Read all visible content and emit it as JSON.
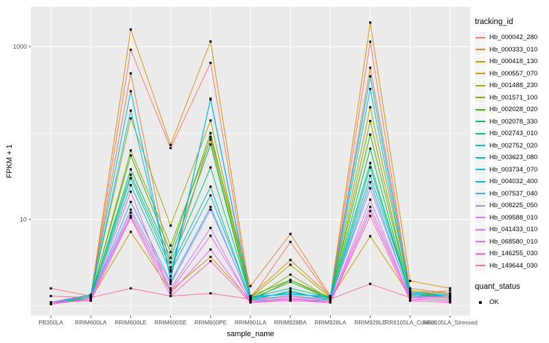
{
  "chart_data": {
    "type": "line",
    "title": "",
    "xlabel": "sample_name",
    "ylabel": "FPKM + 1",
    "y_scale": "log10",
    "ylim": [
      0.9,
      2400
    ],
    "grid": true,
    "legend_position": "right",
    "panel_bg": "#EBEBEB",
    "grid_color": "#FFFFFF",
    "tick_color": "#333333",
    "tick_label_color": "#4D4D4D",
    "point_color": "#000000",
    "y_ticks": [
      {
        "value": 10,
        "label": "10"
      },
      {
        "value": 1000,
        "label": "1000"
      }
    ],
    "y_minor_gridlines": [
      1,
      100
    ],
    "categories": [
      "PB350LA",
      "RRIM600LA",
      "RRIM600LE",
      "RRIM600SE",
      "RRIM600PE",
      "RRIM901LA",
      "RRIM928BA",
      "RRIM928LA",
      "RRIM928LE",
      "RRII105LA_Control",
      "RRII105LA_Stressed"
    ],
    "series": [
      {
        "name": "Hb_000042_280",
        "color": "#F8766D",
        "values": [
          1.6,
          1.3,
          920,
          67,
          650,
          1.2,
          5.5,
          1.25,
          1140,
          1.4,
          1.5
        ]
      },
      {
        "name": "Hb_000333_010",
        "color": "#EA8331",
        "values": [
          1.1,
          1.35,
          490,
          2.6,
          90,
          1.7,
          6.8,
          1.3,
          570,
          1.6,
          1.4
        ]
      },
      {
        "name": "Hb_000418_130",
        "color": "#D89000",
        "values": [
          1.05,
          1.3,
          1580,
          73,
          1150,
          1.3,
          3.4,
          1.3,
          1900,
          1.95,
          1.6
        ]
      },
      {
        "name": "Hb_000557_070",
        "color": "#C09B00",
        "values": [
          1.1,
          1.2,
          7.2,
          1.5,
          3.7,
          1.15,
          2.0,
          1.2,
          6.4,
          1.3,
          1.25
        ]
      },
      {
        "name": "Hb_001488_230",
        "color": "#A3A500",
        "values": [
          1.1,
          1.3,
          148,
          8.5,
          140,
          1.25,
          3.0,
          1.25,
          199,
          1.5,
          1.4
        ]
      },
      {
        "name": "Hb_001571_100",
        "color": "#7CAE00",
        "values": [
          1.05,
          1.25,
          63,
          5.0,
          84,
          1.2,
          2.3,
          1.2,
          138,
          1.35,
          1.3
        ]
      },
      {
        "name": "Hb_002028_020",
        "color": "#39B600",
        "values": [
          1.1,
          1.3,
          55,
          4.2,
          100,
          1.3,
          2.0,
          1.25,
          96,
          1.4,
          1.35
        ]
      },
      {
        "name": "Hb_002078_330",
        "color": "#00BB4E",
        "values": [
          1.05,
          1.25,
          38,
          3.6,
          74,
          1.2,
          1.9,
          1.2,
          66,
          1.3,
          1.3
        ]
      },
      {
        "name": "Hb_002743_010",
        "color": "#00BF7D",
        "values": [
          1.1,
          1.3,
          33,
          3.2,
          40,
          1.25,
          1.6,
          1.25,
          45,
          1.35,
          1.3
        ]
      },
      {
        "name": "Hb_002752_020",
        "color": "#00C1A3",
        "values": [
          1.05,
          1.2,
          30,
          2.8,
          24,
          1.15,
          1.5,
          1.15,
          40,
          1.3,
          1.25
        ]
      },
      {
        "name": "Hb_003623_080",
        "color": "#00BFC4",
        "values": [
          1.1,
          1.25,
          25,
          2.5,
          19,
          1.2,
          1.45,
          1.2,
          32,
          1.4,
          1.3
        ]
      },
      {
        "name": "Hb_003734_070",
        "color": "#00BAE0",
        "values": [
          1.05,
          1.3,
          182,
          2.2,
          245,
          1.25,
          1.4,
          1.25,
          324,
          1.35,
          1.3
        ]
      },
      {
        "name": "Hb_004032_400",
        "color": "#00B0F6",
        "values": [
          1.1,
          1.35,
          305,
          2.0,
          250,
          1.3,
          1.35,
          1.3,
          453,
          1.45,
          1.35
        ]
      },
      {
        "name": "Hb_007537_040",
        "color": "#35A2FF",
        "values": [
          1.05,
          1.2,
          16,
          1.9,
          14,
          1.15,
          1.3,
          1.15,
          27,
          1.25,
          1.2
        ]
      },
      {
        "name": "Hb_008225_050",
        "color": "#9590FF",
        "values": [
          1.1,
          1.25,
          13,
          1.8,
          13,
          1.2,
          1.3,
          1.2,
          23,
          1.3,
          1.25
        ]
      },
      {
        "name": "Hb_009588_010",
        "color": "#C77CFF",
        "values": [
          1.05,
          1.2,
          12,
          1.6,
          8,
          1.1,
          1.25,
          1.1,
          17,
          1.2,
          1.15
        ]
      },
      {
        "name": "Hb_041433_010",
        "color": "#E76BF3",
        "values": [
          1.1,
          1.25,
          11,
          1.5,
          6.5,
          1.15,
          1.2,
          1.15,
          14,
          1.25,
          1.2
        ]
      },
      {
        "name": "Hb_068580_010",
        "color": "#FA62DB",
        "values": [
          1.05,
          1.2,
          21,
          1.4,
          4.5,
          1.1,
          1.15,
          1.1,
          12.5,
          1.2,
          1.15
        ]
      },
      {
        "name": "Hb_146255_030",
        "color": "#FF62BC",
        "values": [
          1.1,
          1.15,
          10.5,
          1.3,
          3.3,
          1.1,
          1.2,
          1.1,
          11,
          1.15,
          1.1
        ]
      },
      {
        "name": "Hb_149644_030",
        "color": "#FF6A98",
        "values": [
          1.3,
          1.25,
          1.6,
          1.3,
          1.4,
          1.2,
          1.3,
          1.2,
          1.8,
          1.25,
          1.3
        ]
      }
    ]
  },
  "legend": {
    "tracking_title": "tracking_id",
    "quant_title": "quant_status",
    "quant_items": [
      {
        "label": "OK",
        "marker": "black-square"
      }
    ]
  }
}
